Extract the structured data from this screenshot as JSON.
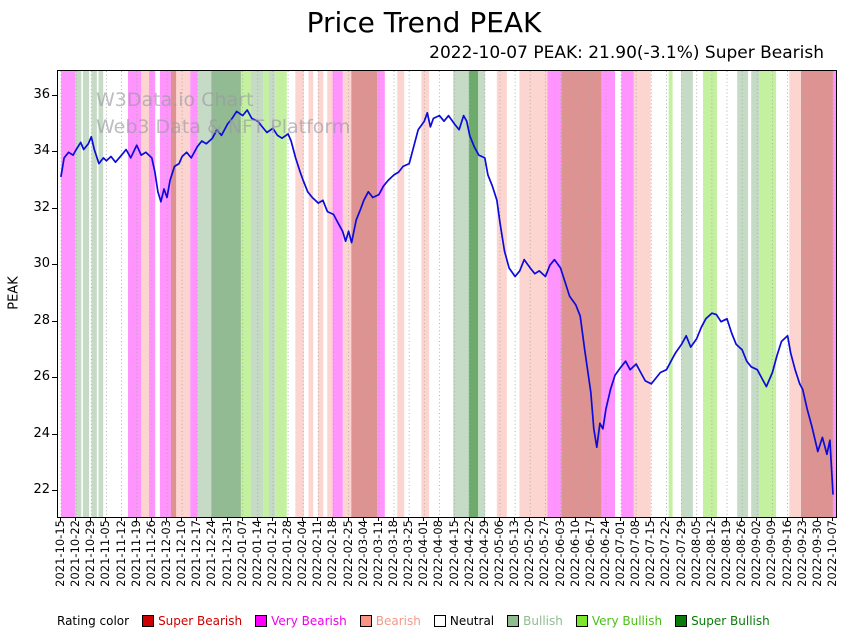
{
  "title": "Price Trend PEAK",
  "subtitle": "2022-10-07 PEAK: 21.90(-3.1%) Super Bearish",
  "watermark": {
    "line1": "W3Data.io Chart",
    "line2": "Web3 Data & NFT Platform"
  },
  "legend": {
    "label": "Rating color",
    "items": [
      {
        "key": "super_bearish",
        "label": "Super Bearish",
        "swatch": "#cc0000",
        "text": "#cc0000"
      },
      {
        "key": "very_bearish",
        "label": "Very Bearish",
        "swatch": "#ff00ff",
        "text": "#ee00ee"
      },
      {
        "key": "bearish",
        "label": "Bearish",
        "swatch": "#fa9384",
        "text": "#f29a8a"
      },
      {
        "key": "neutral",
        "label": "Neutral",
        "swatch": "#ffffff",
        "text": "#000000"
      },
      {
        "key": "bullish",
        "label": "Bullish",
        "swatch": "#8fbc8f",
        "text": "#8fbc8f"
      },
      {
        "key": "very_bullish",
        "label": "Very Bullish",
        "swatch": "#7ce52e",
        "text": "#4bbf1a"
      },
      {
        "key": "super_bullish",
        "label": "Super Bullish",
        "swatch": "#0a7a0a",
        "text": "#0a7a0a"
      }
    ]
  },
  "chart_data": {
    "type": "line",
    "title": "Price Trend PEAK",
    "xlabel": "",
    "ylabel": "PEAK",
    "ylim": [
      21.08,
      36.88
    ],
    "xlim_weeks": [
      -0.2,
      51.2
    ],
    "yticks": [
      22,
      24,
      26,
      28,
      30,
      32,
      34,
      36
    ],
    "grid": "vertical dotted",
    "legend_position": "bottom",
    "line_color": "#0b0bdc",
    "last_point": {
      "date": "2022-10-07",
      "value": 21.9,
      "change_pct": -3.1,
      "rating": "Super Bearish"
    },
    "xtick_labels": [
      "2021-10-15",
      "2021-10-22",
      "2021-10-29",
      "2021-11-05",
      "2021-11-12",
      "2021-11-19",
      "2021-11-26",
      "2021-12-03",
      "2021-12-10",
      "2021-12-17",
      "2021-12-24",
      "2021-12-31",
      "2022-01-07",
      "2022-01-14",
      "2022-01-21",
      "2022-01-28",
      "2022-02-04",
      "2022-02-11",
      "2022-02-18",
      "2022-02-25",
      "2022-03-04",
      "2022-03-11",
      "2022-03-18",
      "2022-03-25",
      "2022-04-01",
      "2022-04-08",
      "2022-04-15",
      "2022-04-22",
      "2022-04-29",
      "2022-05-06",
      "2022-05-13",
      "2022-05-20",
      "2022-05-27",
      "2022-06-03",
      "2022-06-10",
      "2022-06-17",
      "2022-06-24",
      "2022-07-01",
      "2022-07-08",
      "2022-07-15",
      "2022-07-22",
      "2022-07-29",
      "2022-08-05",
      "2022-08-12",
      "2022-08-19",
      "2022-08-26",
      "2022-09-02",
      "2022-09-09",
      "2022-09-16",
      "2022-09-23",
      "2022-09-30",
      "2022-10-07"
    ],
    "series": [
      {
        "name": "PEAK",
        "x_weeks": [
          0,
          0.2,
          0.5,
          0.8,
          1,
          1.3,
          1.5,
          1.8,
          2,
          2.2,
          2.5,
          2.8,
          3,
          3.3,
          3.6,
          4,
          4.3,
          4.6,
          5,
          5.3,
          5.6,
          6,
          6.2,
          6.4,
          6.6,
          6.8,
          7,
          7.2,
          7.5,
          7.8,
          8,
          8.3,
          8.6,
          9,
          9.3,
          9.6,
          10,
          10.3,
          10.6,
          11,
          11.3,
          11.6,
          12,
          12.3,
          12.6,
          13,
          13.3,
          13.6,
          14,
          14.3,
          14.6,
          15,
          15.2,
          15.5,
          15.8,
          16,
          16.3,
          16.6,
          17,
          17.3,
          17.6,
          18,
          18.3,
          18.6,
          18.8,
          19,
          19.2,
          19.5,
          19.8,
          20,
          20.3,
          20.6,
          21,
          21.3,
          21.6,
          22,
          22.3,
          22.6,
          23,
          23.3,
          23.6,
          24,
          24.2,
          24.4,
          24.6,
          25,
          25.3,
          25.6,
          26,
          26.3,
          26.6,
          26.8,
          27,
          27.3,
          27.6,
          28,
          28.2,
          28.5,
          28.8,
          29,
          29.3,
          29.6,
          30,
          30.3,
          30.6,
          31,
          31.3,
          31.6,
          32,
          32.3,
          32.6,
          33,
          33.3,
          33.6,
          34,
          34.3,
          34.6,
          35,
          35.2,
          35.4,
          35.6,
          35.8,
          36,
          36.3,
          36.6,
          37,
          37.3,
          37.6,
          38,
          38.3,
          38.6,
          39,
          39.3,
          39.6,
          40,
          40.3,
          40.6,
          41,
          41.3,
          41.6,
          42,
          42.3,
          42.6,
          43,
          43.3,
          43.6,
          44,
          44.3,
          44.6,
          45,
          45.3,
          45.6,
          46,
          46.3,
          46.6,
          47,
          47.3,
          47.6,
          48,
          48.2,
          48.5,
          48.8,
          49,
          49.3,
          49.6,
          50,
          50.3,
          50.6,
          50.8,
          51
        ],
        "values": [
          33.15,
          33.8,
          34.0,
          33.9,
          34.1,
          34.35,
          34.1,
          34.3,
          34.55,
          34.1,
          33.6,
          33.8,
          33.7,
          33.85,
          33.65,
          33.9,
          34.1,
          33.8,
          34.25,
          33.9,
          34.0,
          33.8,
          33.3,
          32.6,
          32.25,
          32.7,
          32.4,
          33.0,
          33.5,
          33.6,
          33.85,
          34.0,
          33.8,
          34.2,
          34.4,
          34.3,
          34.5,
          34.8,
          34.6,
          35.0,
          35.2,
          35.45,
          35.3,
          35.5,
          35.2,
          35.1,
          34.9,
          34.7,
          34.85,
          34.6,
          34.5,
          34.65,
          34.4,
          33.8,
          33.3,
          33.0,
          32.6,
          32.4,
          32.2,
          32.3,
          31.9,
          31.8,
          31.5,
          31.2,
          30.85,
          31.2,
          30.8,
          31.6,
          32.0,
          32.3,
          32.6,
          32.4,
          32.5,
          32.8,
          33.0,
          33.2,
          33.3,
          33.5,
          33.6,
          34.2,
          34.8,
          35.1,
          35.4,
          34.9,
          35.2,
          35.3,
          35.1,
          35.3,
          35.0,
          34.8,
          35.3,
          35.1,
          34.6,
          34.2,
          33.9,
          33.8,
          33.2,
          32.8,
          32.3,
          31.5,
          30.5,
          29.9,
          29.6,
          29.8,
          30.2,
          29.9,
          29.7,
          29.8,
          29.6,
          30.0,
          30.2,
          29.9,
          29.4,
          28.9,
          28.6,
          28.2,
          27.0,
          25.5,
          24.2,
          23.55,
          24.4,
          24.2,
          24.9,
          25.6,
          26.1,
          26.4,
          26.6,
          26.3,
          26.5,
          26.2,
          25.9,
          25.8,
          26.0,
          26.2,
          26.3,
          26.6,
          26.9,
          27.2,
          27.5,
          27.1,
          27.4,
          27.8,
          28.1,
          28.3,
          28.25,
          28.0,
          28.1,
          27.6,
          27.2,
          27.0,
          26.6,
          26.4,
          26.3,
          26.0,
          25.7,
          26.2,
          26.8,
          27.3,
          27.5,
          26.9,
          26.3,
          25.8,
          25.6,
          24.9,
          24.3,
          23.4,
          23.9,
          23.3,
          23.8,
          21.9
        ]
      }
    ],
    "band_colors": {
      "super_bearish": "rgba(190,40,40,0.50)",
      "very_bearish": "rgba(255,0,255,0.42)",
      "bearish": "rgba(250,125,110,0.32)",
      "neutral": "rgba(255,255,255,0)",
      "bullish": "rgba(105,160,105,0.38)",
      "bullish_dense": "rgba(80,145,80,0.62)",
      "very_bullish": "rgba(125,225,45,0.45)",
      "super_bullish": "rgba(20,120,20,0.62)"
    },
    "bands": [
      {
        "start": 0.004,
        "end": 0.022,
        "rating": "very_bearish"
      },
      {
        "start": 0.022,
        "end": 0.03,
        "rating": "bullish"
      },
      {
        "start": 0.032,
        "end": 0.04,
        "rating": "bullish"
      },
      {
        "start": 0.043,
        "end": 0.05,
        "rating": "bullish"
      },
      {
        "start": 0.052,
        "end": 0.058,
        "rating": "bullish"
      },
      {
        "start": 0.09,
        "end": 0.107,
        "rating": "very_bearish"
      },
      {
        "start": 0.107,
        "end": 0.117,
        "rating": "bearish"
      },
      {
        "start": 0.117,
        "end": 0.125,
        "rating": "very_bearish"
      },
      {
        "start": 0.131,
        "end": 0.145,
        "rating": "very_bearish"
      },
      {
        "start": 0.145,
        "end": 0.152,
        "rating": "super_bearish"
      },
      {
        "start": 0.152,
        "end": 0.17,
        "rating": "bearish"
      },
      {
        "start": 0.17,
        "end": 0.179,
        "rating": "very_bearish"
      },
      {
        "start": 0.179,
        "end": 0.197,
        "rating": "bullish"
      },
      {
        "start": 0.197,
        "end": 0.235,
        "rating": "bullish_dense"
      },
      {
        "start": 0.235,
        "end": 0.248,
        "rating": "very_bullish"
      },
      {
        "start": 0.248,
        "end": 0.264,
        "rating": "bullish"
      },
      {
        "start": 0.264,
        "end": 0.271,
        "rating": "very_bullish"
      },
      {
        "start": 0.271,
        "end": 0.279,
        "rating": "bullish"
      },
      {
        "start": 0.279,
        "end": 0.294,
        "rating": "very_bullish"
      },
      {
        "start": 0.305,
        "end": 0.316,
        "rating": "bearish"
      },
      {
        "start": 0.322,
        "end": 0.328,
        "rating": "bearish"
      },
      {
        "start": 0.334,
        "end": 0.341,
        "rating": "bearish"
      },
      {
        "start": 0.346,
        "end": 0.353,
        "rating": "bearish"
      },
      {
        "start": 0.353,
        "end": 0.366,
        "rating": "very_bearish"
      },
      {
        "start": 0.366,
        "end": 0.377,
        "rating": "bearish"
      },
      {
        "start": 0.377,
        "end": 0.41,
        "rating": "super_bearish"
      },
      {
        "start": 0.41,
        "end": 0.42,
        "rating": "very_bearish"
      },
      {
        "start": 0.436,
        "end": 0.445,
        "rating": "bearish"
      },
      {
        "start": 0.467,
        "end": 0.477,
        "rating": "bearish"
      },
      {
        "start": 0.508,
        "end": 0.528,
        "rating": "bullish"
      },
      {
        "start": 0.528,
        "end": 0.54,
        "rating": "super_bullish"
      },
      {
        "start": 0.54,
        "end": 0.549,
        "rating": "bullish"
      },
      {
        "start": 0.564,
        "end": 0.577,
        "rating": "bearish"
      },
      {
        "start": 0.593,
        "end": 0.629,
        "rating": "bearish"
      },
      {
        "start": 0.629,
        "end": 0.647,
        "rating": "very_bearish"
      },
      {
        "start": 0.647,
        "end": 0.698,
        "rating": "super_bearish"
      },
      {
        "start": 0.698,
        "end": 0.716,
        "rating": "very_bearish"
      },
      {
        "start": 0.724,
        "end": 0.74,
        "rating": "very_bearish"
      },
      {
        "start": 0.74,
        "end": 0.762,
        "rating": "bearish"
      },
      {
        "start": 0.785,
        "end": 0.79,
        "rating": "very_bullish"
      },
      {
        "start": 0.801,
        "end": 0.816,
        "rating": "bullish"
      },
      {
        "start": 0.829,
        "end": 0.847,
        "rating": "very_bullish"
      },
      {
        "start": 0.873,
        "end": 0.887,
        "rating": "bullish"
      },
      {
        "start": 0.891,
        "end": 0.901,
        "rating": "bullish"
      },
      {
        "start": 0.901,
        "end": 0.923,
        "rating": "very_bullish"
      },
      {
        "start": 0.94,
        "end": 0.955,
        "rating": "bearish"
      },
      {
        "start": 0.955,
        "end": 0.996,
        "rating": "super_bearish"
      },
      {
        "start": 0.996,
        "end": 1.0,
        "rating": "very_bearish"
      }
    ]
  }
}
